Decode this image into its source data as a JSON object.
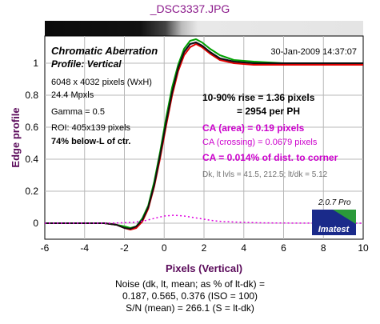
{
  "title": "_DSC3337.JPG",
  "chart_data": {
    "type": "line",
    "title": "Chromatic Aberration",
    "subtitle": "Profile: Vertical",
    "timestamp": "30-Jan-2009 14:37:07",
    "xlabel": "Pixels (Vertical)",
    "ylabel": "Edge profile",
    "xlim": [
      -6,
      10
    ],
    "ylim": [
      -0.1,
      1.17
    ],
    "xticks": [
      -6,
      -4,
      -2,
      0,
      2,
      4,
      6,
      8,
      10
    ],
    "yticks": [
      0,
      0.2,
      0.4,
      0.6,
      0.8,
      1
    ],
    "grid": true,
    "series": [
      {
        "color": "#1a1ad6",
        "x": [
          -6,
          -3,
          -2.4,
          -2,
          -1.7,
          -1.4,
          -1.1,
          -0.8,
          -0.5,
          -0.2,
          0.1,
          0.4,
          0.7,
          1.0,
          1.3,
          1.6,
          1.9,
          2.3,
          2.8,
          3.5,
          4.5,
          6,
          8,
          10
        ],
        "y": [
          0,
          0,
          -0.01,
          -0.03,
          -0.035,
          -0.02,
          0.02,
          0.1,
          0.24,
          0.42,
          0.62,
          0.82,
          0.97,
          1.07,
          1.12,
          1.13,
          1.11,
          1.07,
          1.03,
          1.01,
          1.0,
          1.0,
          1.0,
          1.0
        ]
      },
      {
        "color": "#00a000",
        "x": [
          -6,
          -3,
          -2.4,
          -2,
          -1.7,
          -1.4,
          -1.1,
          -0.8,
          -0.5,
          -0.2,
          0.1,
          0.4,
          0.7,
          1.0,
          1.3,
          1.6,
          1.9,
          2.3,
          2.8,
          3.5,
          4.5,
          6,
          8,
          10
        ],
        "y": [
          0,
          0,
          -0.01,
          -0.02,
          -0.03,
          -0.02,
          0.03,
          0.11,
          0.26,
          0.45,
          0.66,
          0.85,
          0.99,
          1.09,
          1.14,
          1.15,
          1.13,
          1.09,
          1.05,
          1.02,
          1.01,
          1.0,
          1.0,
          1.0
        ]
      },
      {
        "color": "#e00000",
        "x": [
          -6,
          -3,
          -2.4,
          -2,
          -1.7,
          -1.4,
          -1.1,
          -0.8,
          -0.5,
          -0.2,
          0.1,
          0.4,
          0.7,
          1.0,
          1.3,
          1.6,
          1.9,
          2.3,
          2.8,
          3.5,
          4.5,
          6,
          8,
          10
        ],
        "y": [
          0,
          0,
          -0.01,
          -0.03,
          -0.04,
          -0.03,
          0.01,
          0.09,
          0.23,
          0.41,
          0.61,
          0.8,
          0.95,
          1.05,
          1.1,
          1.12,
          1.1,
          1.06,
          1.02,
          1.0,
          0.99,
          0.99,
          0.99,
          0.99
        ]
      },
      {
        "color": "#111111",
        "x": [
          -6,
          -3,
          -2.4,
          -2,
          -1.7,
          -1.4,
          -1.1,
          -0.8,
          -0.5,
          -0.2,
          0.1,
          0.4,
          0.7,
          1.0,
          1.3,
          1.6,
          1.9,
          2.3,
          2.8,
          3.5,
          4.5,
          6,
          8,
          10
        ],
        "y": [
          0,
          0,
          -0.01,
          -0.03,
          -0.035,
          -0.02,
          0.02,
          0.1,
          0.24,
          0.43,
          0.63,
          0.82,
          0.97,
          1.07,
          1.12,
          1.13,
          1.11,
          1.07,
          1.03,
          1.01,
          1.0,
          1.0,
          1.0,
          1.0
        ]
      },
      {
        "color": "#e000e0",
        "dashed": true,
        "x": [
          -6,
          -3,
          -2.5,
          -2,
          -1.5,
          -1,
          -0.5,
          0,
          0.5,
          1,
          1.5,
          2,
          2.5,
          3,
          4,
          5,
          6,
          8,
          10
        ],
        "y": [
          0,
          0,
          0.001,
          0.003,
          0.006,
          0.015,
          0.03,
          0.045,
          0.05,
          0.045,
          0.035,
          0.025,
          0.015,
          0.01,
          0.005,
          0.002,
          0.001,
          0.0005,
          0
        ]
      }
    ]
  },
  "info_left": [
    "6048 x 4032 pixels (WxH)",
    "24.4 Mpxls",
    "Gamma = 0.5",
    "ROI: 405x139 pixels",
    "74% below-L of ctr."
  ],
  "rise_line1": "10-90% rise = 1.36 pixels",
  "rise_line2": "= 2954 per PH",
  "ca_area": "CA (area) = 0.19 pixels",
  "ca_crossing": "CA (crossing) = 0.0679 pixels",
  "ca_corner": "CA = 0.014% of dist. to corner",
  "dk_levels": "Dk, lt lvls = 41.5, 212.5;  lt/dk = 5.12",
  "version": "2.0.7  Pro",
  "logo_text": "Imatest",
  "noise_line1": "Noise (dk, lt, mean; as % of lt-dk) =",
  "noise_line2": "0.187,  0.565,  0.376  (ISO =  100)",
  "noise_line3": "S/N (mean) = 266.1  (S = lt-dk)",
  "colors": {
    "title": "#8b1a8b",
    "magenta_text": "#cc00cc",
    "axis_label": "#5a0a5a"
  }
}
